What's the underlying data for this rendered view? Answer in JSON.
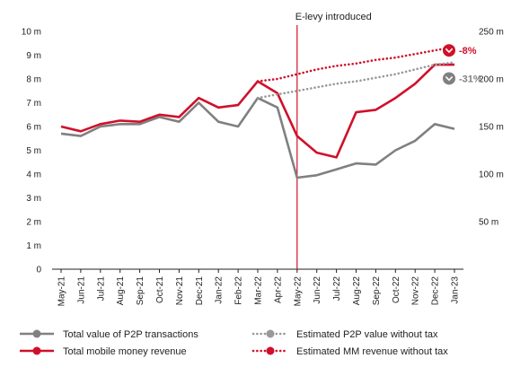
{
  "chart_data": {
    "type": "line",
    "categories": [
      "May-21",
      "Jun-21",
      "Jul-21",
      "Aug-21",
      "Sep-21",
      "Oct-21",
      "Nov-21",
      "Dec-21",
      "Jan-22",
      "Feb-22",
      "Mar-22",
      "Apr-22",
      "May-22",
      "Jun-22",
      "Jul-22",
      "Aug-22",
      "Sep-22",
      "Oct-22",
      "Nov-22",
      "Dec-22",
      "Jan-23"
    ],
    "y_left": {
      "ylim": [
        0,
        10
      ],
      "ticks": [
        "0",
        "1 m",
        "2 m",
        "3 m",
        "4 m",
        "5 m",
        "6 m",
        "7 m",
        "8 m",
        "9 m",
        "10 m"
      ]
    },
    "y_right": {
      "ylim": [
        0,
        250
      ],
      "ticks": [
        "50 m",
        "100 m",
        "150 m",
        "200 m",
        "250 m"
      ]
    },
    "grid": false,
    "legend_position": "bottom",
    "series": [
      {
        "name": "Total value of P2P transactions",
        "axis": "left",
        "color": "#808080",
        "style": "solid",
        "values": [
          5.7,
          5.6,
          6.0,
          6.1,
          6.1,
          6.4,
          6.2,
          7.0,
          6.2,
          6.0,
          7.2,
          6.8,
          3.85,
          3.95,
          4.2,
          4.45,
          4.4,
          5.0,
          5.4,
          6.1,
          5.9
        ]
      },
      {
        "name": "Total mobile money revenue",
        "axis": "left",
        "color": "#d0102a",
        "style": "solid",
        "values": [
          6.0,
          5.8,
          6.1,
          6.25,
          6.2,
          6.5,
          6.4,
          7.2,
          6.8,
          6.9,
          7.9,
          7.4,
          5.6,
          4.9,
          4.7,
          6.6,
          6.7,
          7.2,
          7.8,
          8.6,
          8.6
        ]
      },
      {
        "name": "Estimated P2P value without tax",
        "axis": "left",
        "color": "#999999",
        "style": "dotted",
        "x_start": "Mar-22",
        "values": [
          null,
          null,
          null,
          null,
          null,
          null,
          null,
          null,
          null,
          null,
          7.2,
          7.35,
          7.5,
          7.65,
          7.8,
          7.9,
          8.05,
          8.2,
          8.4,
          8.6,
          8.7
        ]
      },
      {
        "name": "Estimated MM revenue without tax",
        "axis": "left",
        "color": "#d0102a",
        "style": "dotted",
        "x_start": "Mar-22",
        "values": [
          null,
          null,
          null,
          null,
          null,
          null,
          null,
          null,
          null,
          null,
          7.9,
          8.0,
          8.2,
          8.4,
          8.55,
          8.65,
          8.8,
          8.9,
          9.05,
          9.2,
          9.35
        ]
      }
    ],
    "annotations": [
      {
        "label": "E-levy introduced",
        "x": "May-22"
      },
      {
        "label": "-8%",
        "color": "#d0102a",
        "x": "Jan-23"
      },
      {
        "label": "-31%",
        "color": "#808080",
        "x": "Jan-23"
      }
    ]
  },
  "colors": {
    "accent_red": "#d0102a",
    "grey": "#808080",
    "light_grey": "#999999",
    "axis": "#222222"
  },
  "icons": {
    "marker": "chevron-down-icon"
  }
}
